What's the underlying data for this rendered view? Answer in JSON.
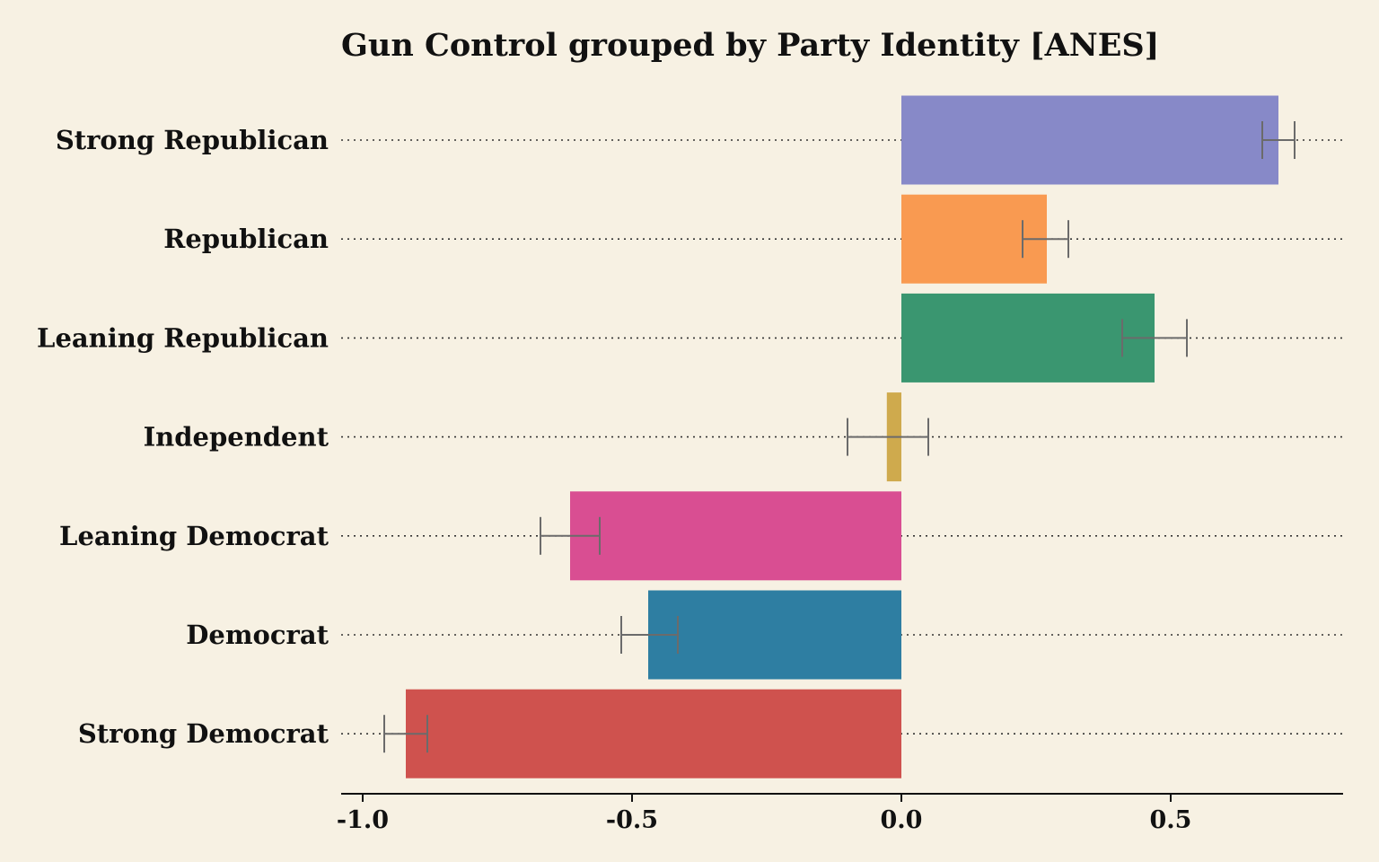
{
  "colors": {
    "background": "#f7f1e3",
    "text": "#111111",
    "errorbar": "#6b6b6b",
    "gridline": "#333333"
  },
  "chart_data": {
    "type": "bar",
    "orientation": "horizontal",
    "title": "Gun Control grouped by Party Identity [ANES]",
    "xlabel": "",
    "ylabel": "",
    "xlim": [
      -1.04,
      0.82
    ],
    "xticks": [
      -1.0,
      -0.5,
      0.0,
      0.5
    ],
    "xtick_labels": [
      "-1.0",
      "-0.5",
      "0.0",
      "0.5"
    ],
    "grid": "dotted horizontal lines at each category",
    "categories": [
      "Strong Republican",
      "Republican",
      "Leaning Republican",
      "Independent",
      "Leaning Democrat",
      "Democrat",
      "Strong Democrat"
    ],
    "values": [
      0.7,
      0.27,
      0.47,
      -0.027,
      -0.615,
      -0.47,
      -0.92
    ],
    "error_low": [
      0.67,
      0.225,
      0.41,
      -0.1,
      -0.67,
      -0.52,
      -0.96
    ],
    "error_high": [
      0.73,
      0.31,
      0.53,
      0.05,
      -0.56,
      -0.415,
      -0.88
    ],
    "bar_colors": [
      "#8789c8",
      "#f99a51",
      "#3a9670",
      "#cfaa4d",
      "#d94e92",
      "#2e7ea2",
      "#cf524e"
    ]
  }
}
